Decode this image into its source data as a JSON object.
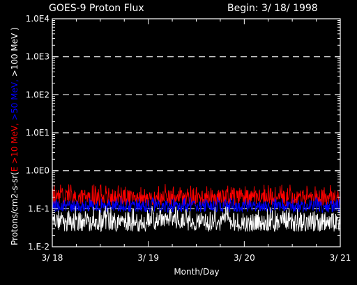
{
  "header": {
    "title": "GOES-9 Proton Flux",
    "begin_label": "Begin: 3/ 18/ 1998"
  },
  "colors": {
    "background": "#000000",
    "axes": "#ffffff",
    "grid": "#ffffff",
    "red_series": "#ff0000",
    "blue_series": "#0000ff",
    "white_series": "#ffffff"
  },
  "chart_data": {
    "type": "line",
    "title": "GOES-9 Proton Flux",
    "subtitle": "Begin: 3/ 18/ 1998",
    "xlabel": "Month/Day",
    "ylabel_parts": [
      {
        "text": "Protons/cm2-s-sr(",
        "color": "#ffffff"
      },
      {
        "text": "E >10 MeV,",
        "color": "#ff0000"
      },
      {
        "text": " >50 MeV,",
        "color": "#0000ff"
      },
      {
        "text": " >100 MeV )",
        "color": "#ffffff"
      }
    ],
    "x_range_days": [
      0,
      3
    ],
    "x_ticks": [
      {
        "value": 0,
        "label": "3/ 18"
      },
      {
        "value": 1,
        "label": "3/ 19"
      },
      {
        "value": 2,
        "label": "3/ 20"
      },
      {
        "value": 3,
        "label": "3/ 21"
      }
    ],
    "y_scale": "log",
    "ylim": [
      0.01,
      10000
    ],
    "y_ticks": [
      {
        "value": 0.01,
        "label": "1.E-2"
      },
      {
        "value": 0.1,
        "label": "1.E-1"
      },
      {
        "value": 1,
        "label": "1.0E0"
      },
      {
        "value": 10,
        "label": "1.0E1"
      },
      {
        "value": 100,
        "label": "1.0E2"
      },
      {
        "value": 1000,
        "label": "1.0E3"
      },
      {
        "value": 10000,
        "label": "1.0E4"
      }
    ],
    "grid": "dashed horizontal lines at each decade",
    "series": [
      {
        "name": "E >10 MeV",
        "color": "#ff0000",
        "typical_min": 0.12,
        "typical_max": 0.45,
        "median": 0.2
      },
      {
        "name": ">50 MeV",
        "color": "#0000ff",
        "typical_min": 0.08,
        "typical_max": 0.2,
        "median": 0.12
      },
      {
        "name": ">100 MeV",
        "color": "#ffffff",
        "typical_min": 0.025,
        "typical_max": 0.12,
        "median": 0.045
      }
    ]
  }
}
